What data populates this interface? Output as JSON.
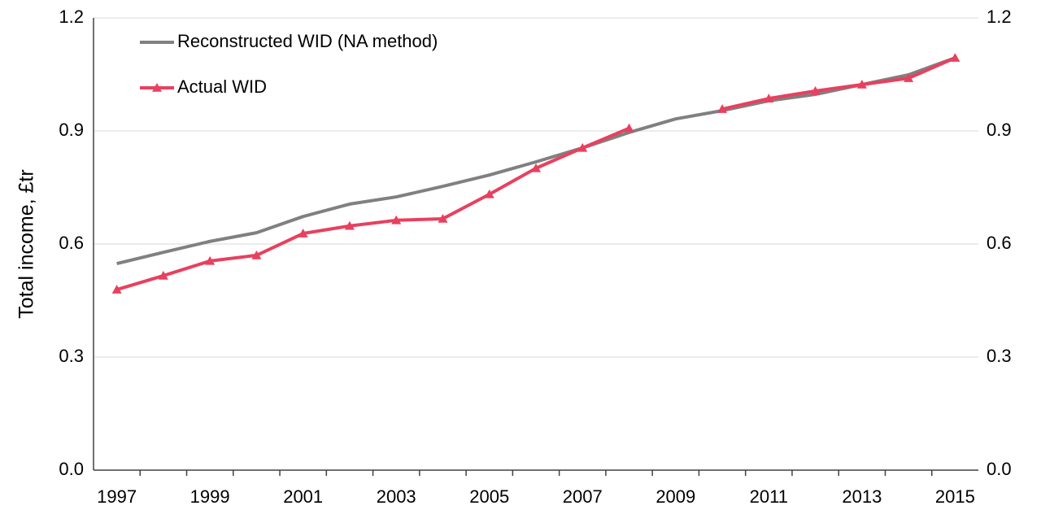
{
  "chart_data": {
    "type": "line",
    "y_label": "Total income, £tr",
    "categories": [
      "1997",
      null,
      "1999",
      null,
      "2001",
      null,
      "2003",
      null,
      "2005",
      null,
      "2007",
      null,
      "2009",
      null,
      "2011",
      null,
      "2013",
      null,
      "2015"
    ],
    "series": [
      {
        "name": "Reconstructed WID (NA method)",
        "color": "#808080",
        "values": [
          0.548,
          0.578,
          0.607,
          0.63,
          0.673,
          0.706,
          0.725,
          0.753,
          0.783,
          0.818,
          0.855,
          0.896,
          0.932,
          0.954,
          0.98,
          0.997,
          1.023,
          1.049,
          1.094
        ]
      },
      {
        "name": "Actual WID",
        "color": "#e8405f",
        "marker": "triangle",
        "values": [
          0.479,
          0.516,
          0.555,
          0.57,
          0.628,
          0.648,
          0.663,
          0.667,
          0.732,
          0.801,
          0.855,
          0.907,
          null,
          0.958,
          0.986,
          1.006,
          1.023,
          1.04,
          1.094
        ]
      }
    ],
    "ylim": [
      0,
      1.2
    ],
    "yticks": [
      {
        "value": 0,
        "label": "0.0"
      },
      0.3,
      0.6,
      0.9,
      1.2
    ],
    "y2lim": [
      0,
      1.2
    ],
    "y2ticks": [
      {
        "value": 0,
        "label": "0.0"
      },
      0.3,
      0.6,
      0.9,
      1.2
    ],
    "grid": true,
    "legend": "upper left"
  }
}
